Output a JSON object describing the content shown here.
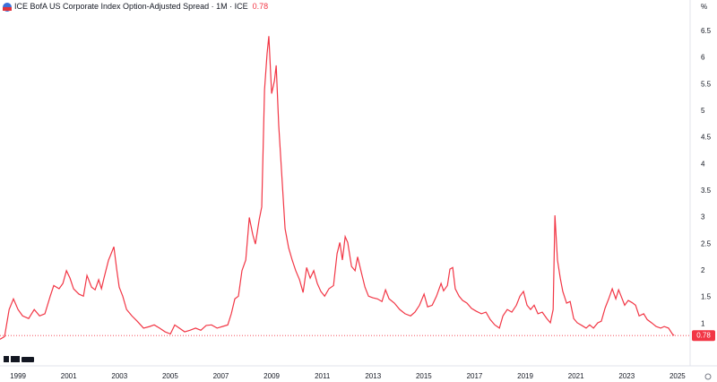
{
  "chart_data": {
    "type": "line",
    "title": "ICE BofA US Corporate Index Option-Adjusted Spread · 1M · ICE",
    "last_value": 0.78,
    "y_unit": "%",
    "x": [
      1998.29,
      1998.47,
      1998.65,
      1998.82,
      1999.0,
      1999.18,
      1999.42,
      1999.64,
      1999.85,
      2000.06,
      2000.27,
      2000.41,
      2000.62,
      2000.77,
      2000.91,
      2001.05,
      2001.19,
      2001.4,
      2001.58,
      2001.72,
      2001.9,
      2002.04,
      2002.18,
      2002.29,
      2002.39,
      2002.57,
      2002.64,
      2002.78,
      2002.89,
      2002.99,
      2003.13,
      2003.28,
      2003.49,
      2003.7,
      2003.95,
      2004.19,
      2004.37,
      2004.58,
      2004.8,
      2005.01,
      2005.18,
      2005.36,
      2005.57,
      2005.78,
      2006.0,
      2006.21,
      2006.42,
      2006.63,
      2006.85,
      2007.06,
      2007.27,
      2007.41,
      2007.55,
      2007.69,
      2007.83,
      2007.98,
      2008.12,
      2008.26,
      2008.36,
      2008.51,
      2008.61,
      2008.72,
      2008.82,
      2008.89,
      2009.0,
      2009.11,
      2009.18,
      2009.28,
      2009.39,
      2009.53,
      2009.67,
      2009.81,
      2009.95,
      2010.1,
      2010.24,
      2010.38,
      2010.52,
      2010.66,
      2010.8,
      2010.94,
      2011.09,
      2011.26,
      2011.44,
      2011.58,
      2011.69,
      2011.79,
      2011.9,
      2012.0,
      2012.15,
      2012.29,
      2012.39,
      2012.53,
      2012.68,
      2012.82,
      2012.99,
      2013.17,
      2013.35,
      2013.49,
      2013.63,
      2013.84,
      2014.05,
      2014.26,
      2014.48,
      2014.65,
      2014.83,
      2015.01,
      2015.15,
      2015.33,
      2015.5,
      2015.68,
      2015.78,
      2015.93,
      2016.03,
      2016.14,
      2016.24,
      2016.39,
      2016.53,
      2016.7,
      2016.88,
      2017.06,
      2017.27,
      2017.45,
      2017.62,
      2017.8,
      2017.98,
      2018.12,
      2018.29,
      2018.47,
      2018.65,
      2018.79,
      2018.93,
      2019.07,
      2019.21,
      2019.35,
      2019.5,
      2019.67,
      2019.85,
      2019.99,
      2020.1,
      2020.17,
      2020.27,
      2020.38,
      2020.48,
      2020.63,
      2020.77,
      2020.91,
      2021.05,
      2021.23,
      2021.4,
      2021.54,
      2021.69,
      2021.86,
      2022.0,
      2022.15,
      2022.29,
      2022.43,
      2022.57,
      2022.68,
      2022.78,
      2022.92,
      2023.06,
      2023.21,
      2023.35,
      2023.49,
      2023.67,
      2023.81,
      2023.98,
      2024.16,
      2024.34,
      2024.48,
      2024.65,
      2024.8,
      2024.87
    ],
    "series": [
      {
        "color": "#f23645",
        "values": [
          0.71,
          0.76,
          1.27,
          1.47,
          1.27,
          1.15,
          1.1,
          1.27,
          1.15,
          1.19,
          1.52,
          1.72,
          1.66,
          1.76,
          2.0,
          1.86,
          1.66,
          1.56,
          1.52,
          1.91,
          1.69,
          1.64,
          1.83,
          1.66,
          1.86,
          2.2,
          2.28,
          2.45,
          2.03,
          1.69,
          1.52,
          1.27,
          1.15,
          1.05,
          0.92,
          0.95,
          0.98,
          0.92,
          0.85,
          0.81,
          0.98,
          0.92,
          0.85,
          0.88,
          0.92,
          0.88,
          0.97,
          0.98,
          0.92,
          0.95,
          0.98,
          1.19,
          1.47,
          1.52,
          2.0,
          2.2,
          3.0,
          2.67,
          2.5,
          2.96,
          3.2,
          5.4,
          6.08,
          6.41,
          5.33,
          5.57,
          5.86,
          4.73,
          3.88,
          2.79,
          2.43,
          2.2,
          2.0,
          1.83,
          1.59,
          2.06,
          1.86,
          2.0,
          1.76,
          1.61,
          1.52,
          1.66,
          1.72,
          2.32,
          2.53,
          2.2,
          2.64,
          2.53,
          2.08,
          2.0,
          2.26,
          1.98,
          1.69,
          1.52,
          1.49,
          1.47,
          1.42,
          1.64,
          1.47,
          1.39,
          1.27,
          1.19,
          1.15,
          1.22,
          1.35,
          1.56,
          1.32,
          1.35,
          1.52,
          1.76,
          1.62,
          1.72,
          2.03,
          2.06,
          1.66,
          1.52,
          1.44,
          1.39,
          1.29,
          1.24,
          1.19,
          1.22,
          1.08,
          0.98,
          0.92,
          1.15,
          1.27,
          1.22,
          1.35,
          1.52,
          1.61,
          1.35,
          1.27,
          1.35,
          1.19,
          1.22,
          1.1,
          1.02,
          1.27,
          3.04,
          2.2,
          1.86,
          1.61,
          1.39,
          1.42,
          1.1,
          1.02,
          0.97,
          0.92,
          0.98,
          0.92,
          1.02,
          1.05,
          1.3,
          1.47,
          1.66,
          1.47,
          1.64,
          1.52,
          1.35,
          1.44,
          1.4,
          1.35,
          1.15,
          1.19,
          1.08,
          1.02,
          0.95,
          0.92,
          0.95,
          0.92,
          0.81,
          0.78
        ]
      }
    ],
    "xlim": [
      1998.29,
      2025.5
    ],
    "xticks": [
      1999,
      2001,
      2003,
      2005,
      2007,
      2009,
      2011,
      2013,
      2015,
      2017,
      2019,
      2021,
      2023,
      2025
    ],
    "ylim": [
      0.21,
      7.09
    ],
    "yticks": [
      1,
      1.5,
      2,
      2.5,
      3,
      3.5,
      4,
      4.5,
      5,
      5.5,
      6,
      6.5
    ]
  }
}
